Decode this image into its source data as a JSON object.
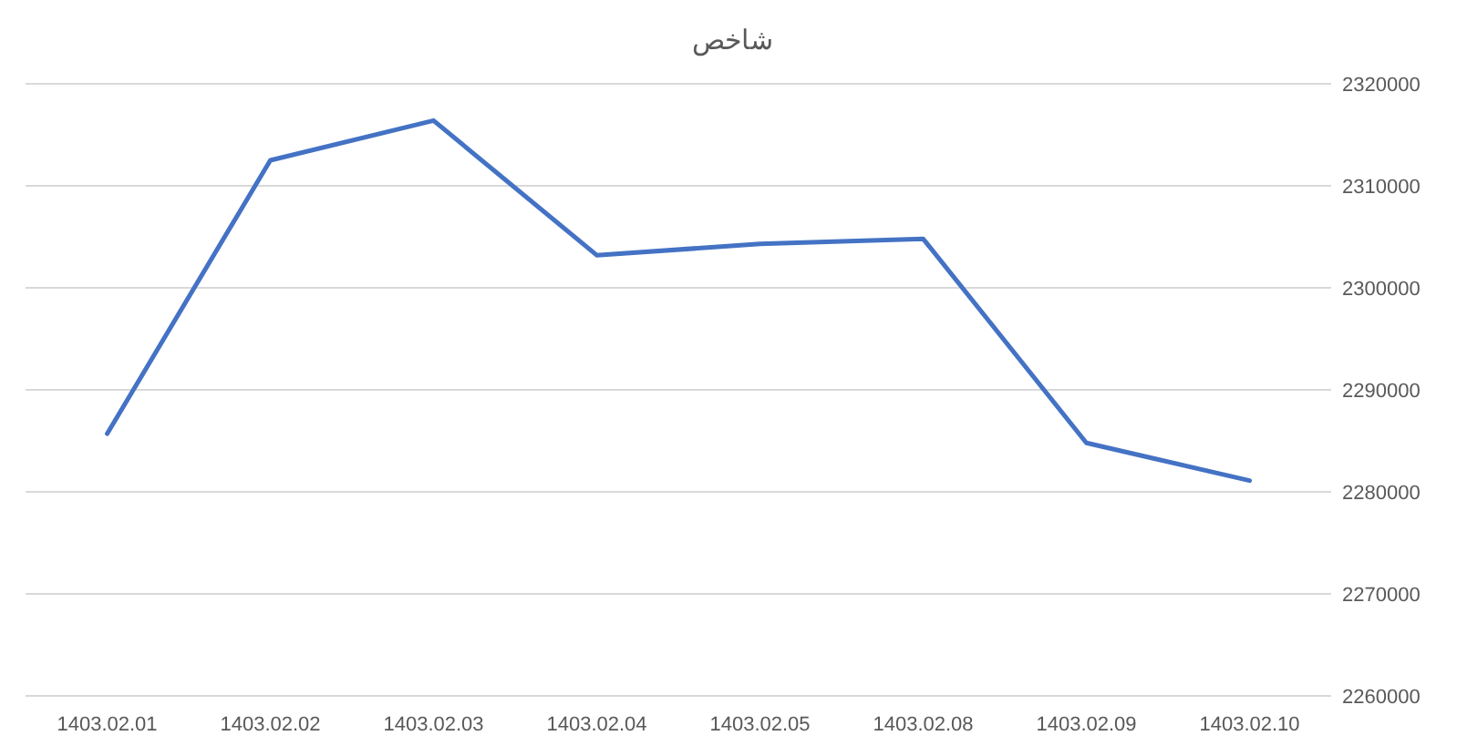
{
  "chart_data": {
    "type": "line",
    "title": "شاخص",
    "categories": [
      "1403.02.01",
      "1403.02.02",
      "1403.02.03",
      "1403.02.04",
      "1403.02.05",
      "1403.02.08",
      "1403.02.09",
      "1403.02.10"
    ],
    "series": [
      {
        "color": "#4472c4",
        "values": [
          2285700,
          2312500,
          2316400,
          2303200,
          2304300,
          2304800,
          2284800,
          2281100
        ]
      }
    ],
    "ylim": [
      2260000,
      2320000
    ],
    "yticks": [
      2260000,
      2270000,
      2280000,
      2290000,
      2300000,
      2310000,
      2320000
    ],
    "grid": "y",
    "marker": "none",
    "line_style": "solid"
  }
}
